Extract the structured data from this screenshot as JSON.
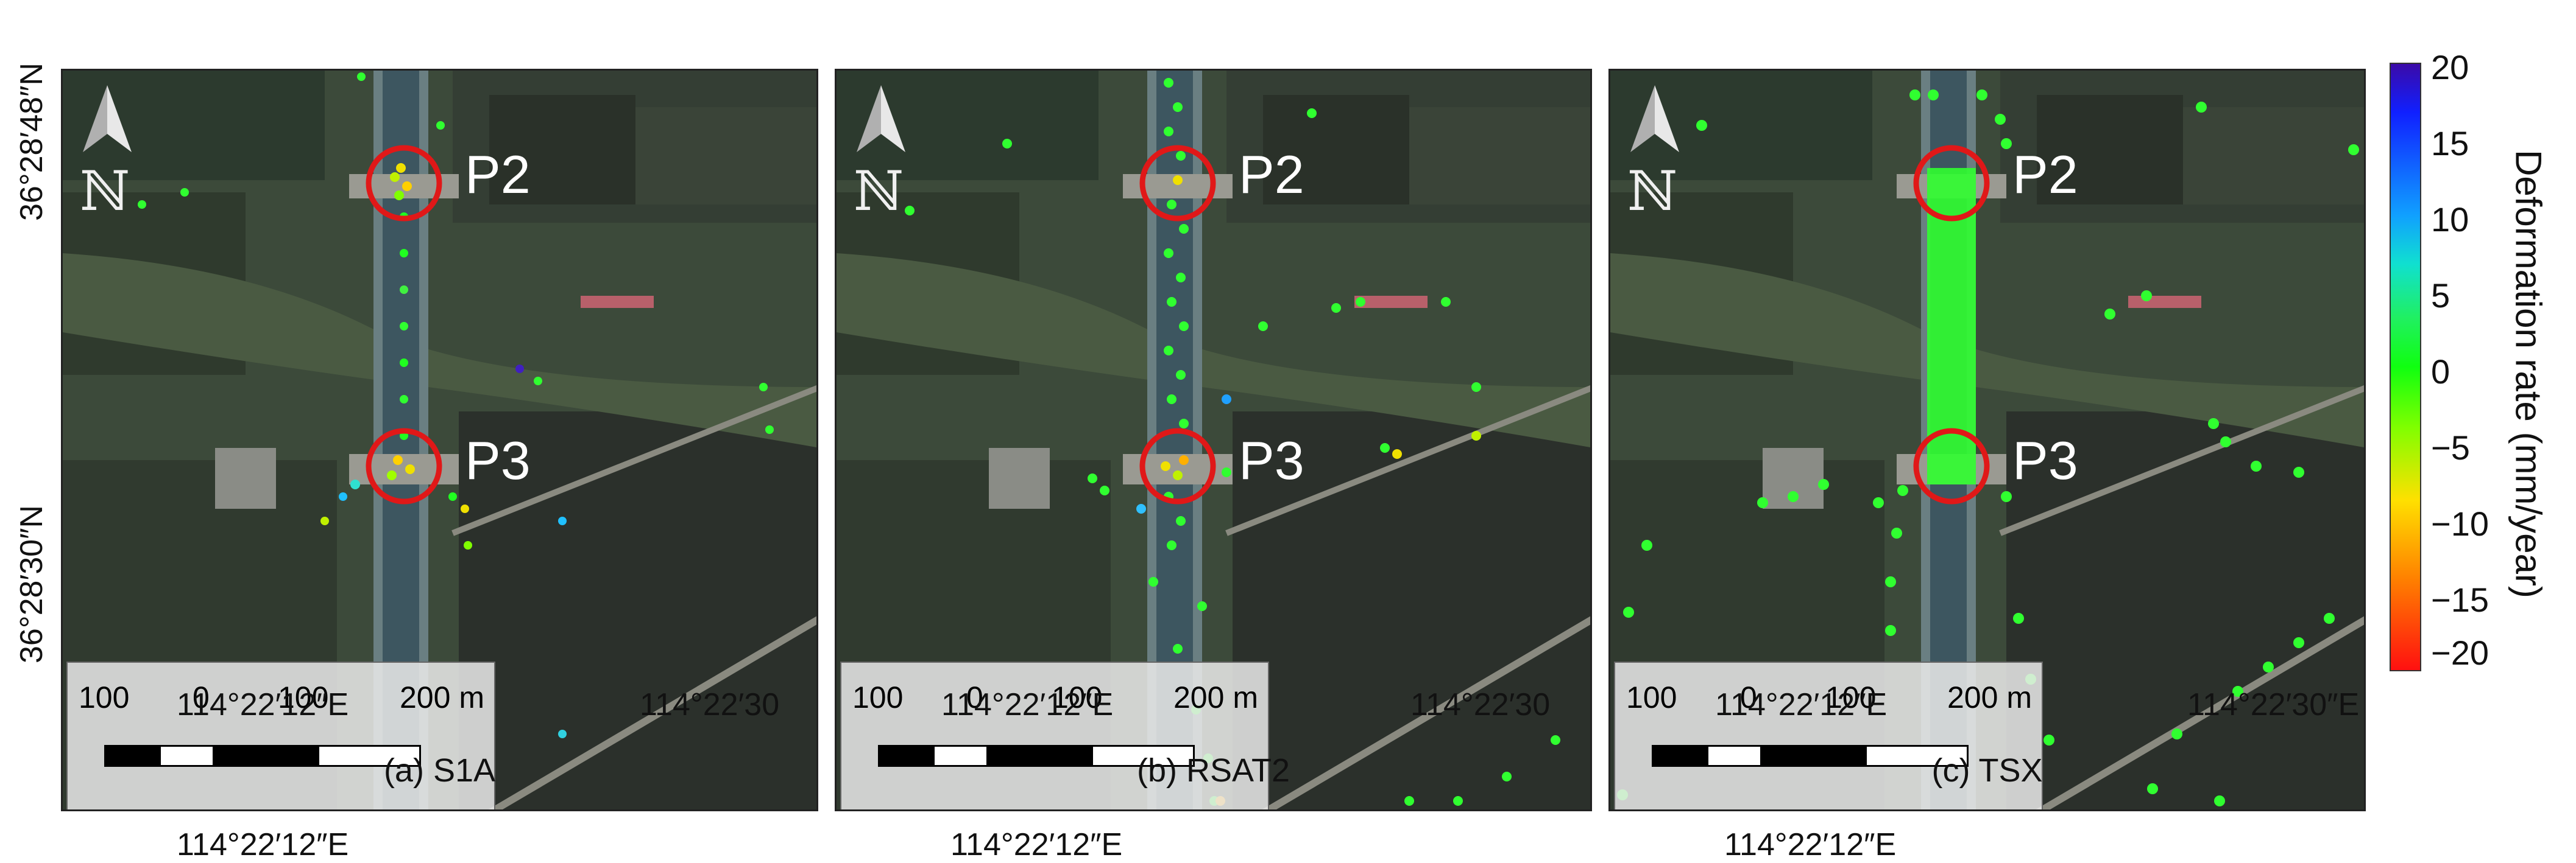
{
  "panels": [
    {
      "caption": "(a) S1A",
      "lon_left": "114°22′12″E",
      "lon_right": "114°22′30"
    },
    {
      "caption": "(b) RSAT2",
      "lon_left": "114°22′12″E",
      "lon_right": "114°22′30"
    },
    {
      "caption": "(c) TSX",
      "lon_left": "114°22′12″E",
      "lon_right": "114°22′30″E"
    }
  ],
  "lat_labels": {
    "top": "36°28′48″N",
    "bottom": "36°28′30″N"
  },
  "points": {
    "p2": "P2",
    "p3": "P3"
  },
  "north_symbol": "ℕ",
  "scale_bar": {
    "labels": [
      "100",
      "0",
      "100",
      "200 m"
    ]
  },
  "colorbar": {
    "title": "Deformation rate (mm/year)",
    "ticks": [
      "20",
      "15",
      "10",
      "5",
      "0",
      "−5",
      "−10",
      "−15",
      "−20"
    ],
    "range": [
      -20,
      20
    ],
    "colors": {
      "max": "#3b0aa8",
      "zero": "#10ff10",
      "min": "#ff1010"
    }
  },
  "colors": {
    "highlight_circle": "#e01818",
    "point_label": "#ffffff"
  }
}
